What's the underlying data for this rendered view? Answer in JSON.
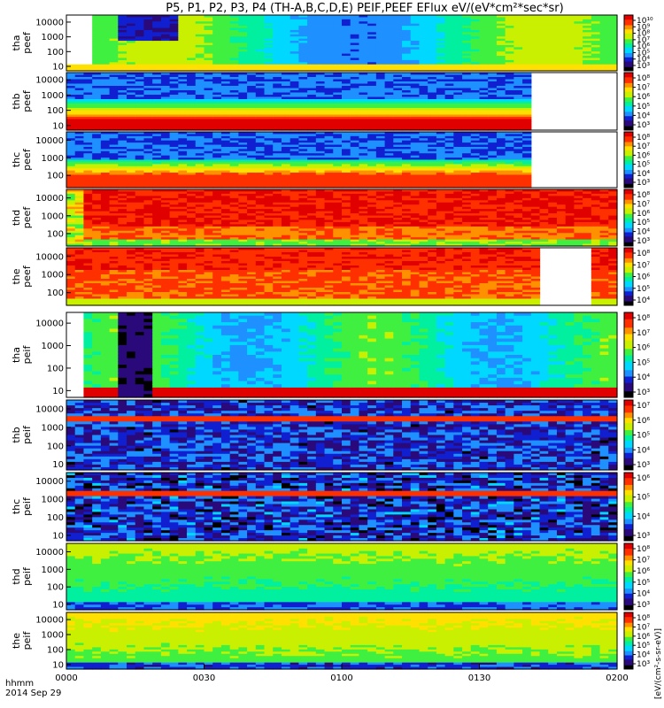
{
  "chart_data": {
    "type": "heatmap",
    "title": "P5, P1, P2, P3, P4 (TH-A,B,C,D,E) PEIF,PEEF EFlux eV/(eV*cm²*sec*sr)",
    "x_axis": {
      "corner_label": "hhmm",
      "date_label": "2014 Sep 29",
      "ticks": [
        "0000",
        "0030",
        "0100",
        "0130",
        "0200"
      ],
      "range": [
        "00:00",
        "02:00"
      ]
    },
    "colorbar_unit": "[eV/(cm²-s-sr-eV)]",
    "colors": {
      "scale": [
        "#000000",
        "#2a0a7a",
        "#1020d0",
        "#1e90ff",
        "#00d8ff",
        "#00f0a0",
        "#40f040",
        "#c8f000",
        "#ffe000",
        "#ff9000",
        "#ff3000",
        "#e00000"
      ]
    },
    "panels": [
      {
        "ylabel": [
          "tha",
          "peef"
        ],
        "yticks": [
          "10000",
          "1000",
          "100",
          "10"
        ],
        "yrange": [
          5,
          30000
        ],
        "log_y": true,
        "cbar_labels": [
          "10¹⁰",
          "10⁹",
          "10⁸",
          "10⁷",
          "10⁶",
          "10⁵",
          "10⁴",
          "10³"
        ],
        "cbar_range_exp": [
          3,
          10
        ],
        "pattern": "tha_peef"
      },
      {
        "ylabel": [
          "thb",
          "peef"
        ],
        "yticks": [
          "10000",
          "1000",
          "100",
          "10"
        ],
        "yrange": [
          5,
          30000
        ],
        "log_y": true,
        "cbar_labels": [
          "10⁸",
          "10⁷",
          "10⁶",
          "10⁵",
          "10⁴",
          "10³"
        ],
        "cbar_range_exp": [
          3,
          8
        ],
        "pattern": "thb_peef"
      },
      {
        "ylabel": [
          "thc",
          "peef"
        ],
        "yticks": [
          "10000",
          "1000",
          "100"
        ],
        "yrange": [
          20,
          30000
        ],
        "log_y": true,
        "cbar_labels": [
          "10⁸",
          "10⁷",
          "10⁶",
          "10⁵",
          "10⁴",
          "10³"
        ],
        "cbar_range_exp": [
          3,
          8
        ],
        "pattern": "thc_peef"
      },
      {
        "ylabel": [
          "thd",
          "peef"
        ],
        "yticks": [
          "10000",
          "1000",
          "100"
        ],
        "yrange": [
          20,
          30000
        ],
        "log_y": true,
        "cbar_labels": [
          "10⁸",
          "10⁷",
          "10⁶",
          "10⁵",
          "10⁴",
          "10³"
        ],
        "cbar_range_exp": [
          3,
          8
        ],
        "pattern": "thd_peef"
      },
      {
        "ylabel": [
          "the",
          "peef"
        ],
        "yticks": [
          "10000",
          "1000",
          "100"
        ],
        "yrange": [
          20,
          30000
        ],
        "log_y": true,
        "cbar_labels": [
          "10⁸",
          "10⁷",
          "10⁶",
          "10⁵",
          "10⁴"
        ],
        "cbar_range_exp": [
          3,
          8
        ],
        "pattern": "the_peef"
      },
      {
        "ylabel": [
          "tha",
          "peif"
        ],
        "yticks": [
          "10000",
          "1000",
          "100",
          "10"
        ],
        "yrange": [
          5,
          30000
        ],
        "log_y": true,
        "cbar_labels": [
          "10⁸",
          "10⁷",
          "10⁶",
          "10⁵",
          "10⁴",
          "10³"
        ],
        "cbar_range_exp": [
          3,
          8
        ],
        "pattern": "tha_peif"
      },
      {
        "ylabel": [
          "thb",
          "peif"
        ],
        "yticks": [
          "10000",
          "1000",
          "100",
          "10"
        ],
        "yrange": [
          5,
          30000
        ],
        "log_y": true,
        "cbar_labels": [
          "10⁷",
          "10⁶",
          "10⁵",
          "10⁴",
          "10³"
        ],
        "cbar_range_exp": [
          3,
          7
        ],
        "pattern": "thb_peif"
      },
      {
        "ylabel": [
          "thc",
          "peif"
        ],
        "yticks": [
          "10000",
          "1000",
          "100",
          "10"
        ],
        "yrange": [
          5,
          30000
        ],
        "log_y": true,
        "cbar_labels": [
          "10⁶",
          "10⁵",
          "10⁴",
          "10³"
        ],
        "cbar_range_exp": [
          3,
          6
        ],
        "pattern": "thc_peif"
      },
      {
        "ylabel": [
          "thd",
          "peif"
        ],
        "yticks": [
          "10000",
          "1000",
          "100",
          "10"
        ],
        "yrange": [
          5,
          30000
        ],
        "log_y": true,
        "cbar_labels": [
          "10⁸",
          "10⁷",
          "10⁶",
          "10⁵",
          "10⁴",
          "10³"
        ],
        "cbar_range_exp": [
          3,
          8
        ],
        "pattern": "thd_peif"
      },
      {
        "ylabel": [
          "the",
          "peif"
        ],
        "yticks": [
          "10000",
          "1000",
          "100",
          "10"
        ],
        "yrange": [
          5,
          30000
        ],
        "log_y": true,
        "cbar_labels": [
          "10⁸",
          "10⁷",
          "10⁶",
          "10⁵",
          "10⁴",
          "10³"
        ],
        "cbar_range_exp": [
          3,
          8
        ],
        "pattern": "the_peif"
      }
    ]
  }
}
